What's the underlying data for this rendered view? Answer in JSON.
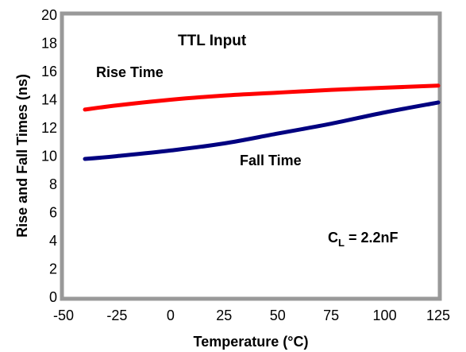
{
  "chart_data": {
    "type": "line",
    "title": "TTL Input",
    "xlabel": "Temperature (°C)",
    "ylabel": "Rise and Fall Times (ns)",
    "xlim": [
      -50,
      125
    ],
    "ylim": [
      0,
      20
    ],
    "grid": false,
    "x_ticks": [
      "-50",
      "-25",
      "0",
      "25",
      "50",
      "75",
      "100",
      "125"
    ],
    "y_ticks": [
      "0",
      "2",
      "4",
      "6",
      "8",
      "10",
      "12",
      "14",
      "16",
      "18",
      "20"
    ],
    "x": [
      -40,
      -25,
      0,
      25,
      50,
      75,
      100,
      125
    ],
    "series": [
      {
        "name": "Rise Time",
        "color": "#ff0000",
        "values": [
          13.3,
          13.6,
          14.0,
          14.3,
          14.5,
          14.7,
          14.85,
          15.0
        ]
      },
      {
        "name": "Fall Time",
        "color": "#000080",
        "values": [
          9.8,
          10.0,
          10.4,
          10.9,
          11.6,
          12.3,
          13.1,
          13.8
        ]
      }
    ],
    "annotations": {
      "capacitance_main": "C",
      "capacitance_sub": "L",
      "capacitance_value": " = 2.2nF"
    },
    "frame_color": "#999999"
  }
}
